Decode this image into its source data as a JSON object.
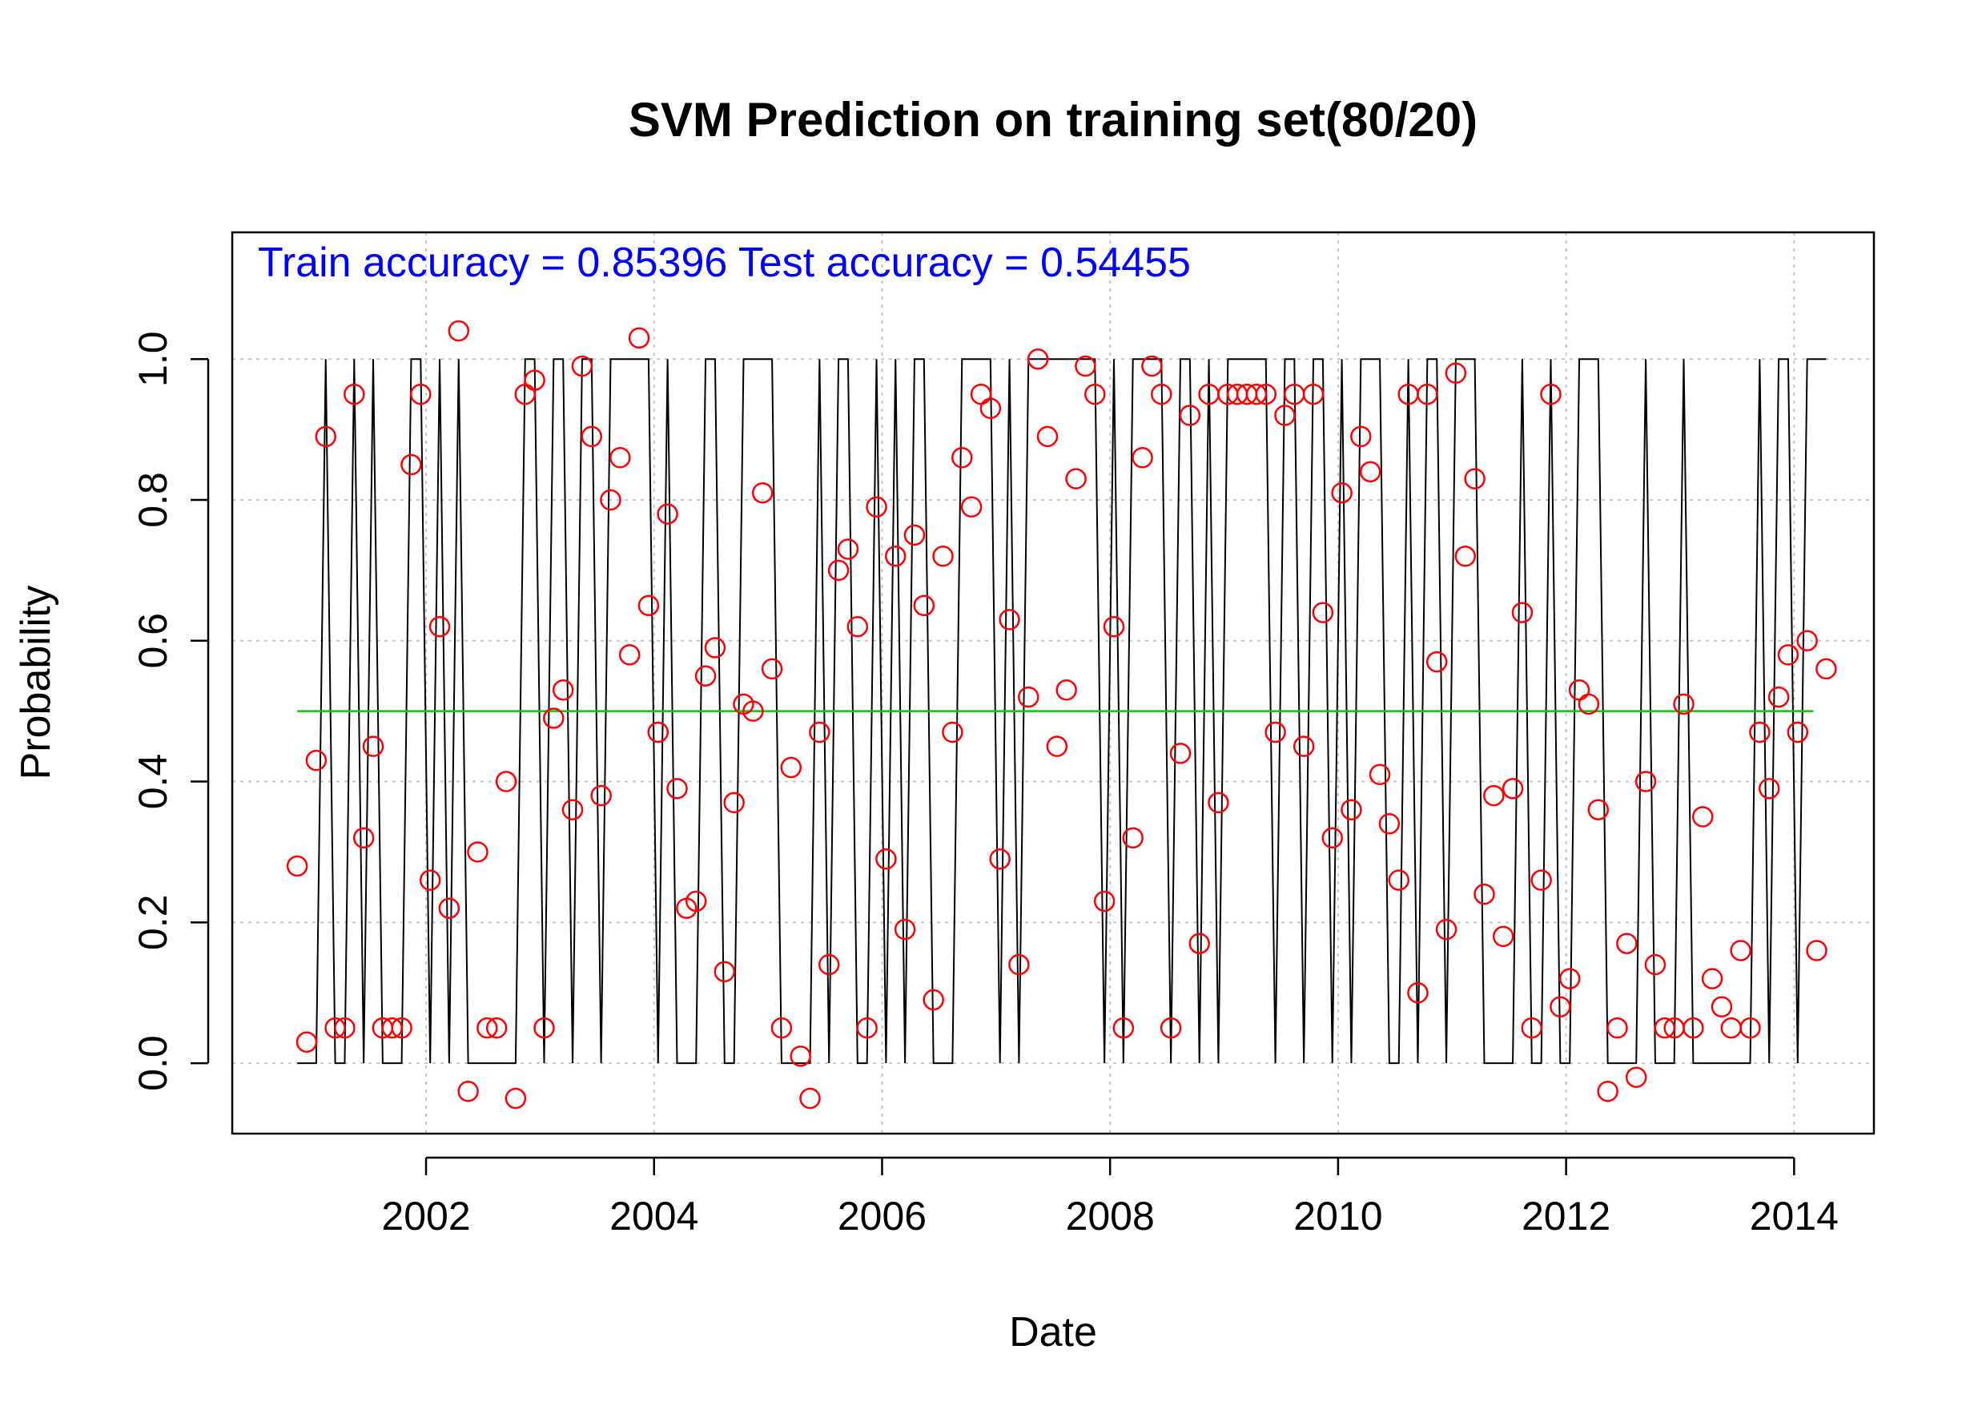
{
  "chart_data": {
    "type": "scatter",
    "title": "SVM Prediction on training set(80/20)",
    "xlabel": "Date",
    "ylabel": "Probability",
    "annotation": "Train accuracy = 0.85396 Test accuracy = 0.54455",
    "x_ticks": [
      "2002",
      "2004",
      "2006",
      "2008",
      "2010",
      "2012",
      "2014"
    ],
    "y_ticks": [
      "0.0",
      "0.2",
      "0.4",
      "0.6",
      "0.8",
      "1.0"
    ],
    "xlim": [
      2000.3,
      2014.7
    ],
    "ylim": [
      -0.1,
      1.18
    ],
    "grid": true,
    "threshold": 0.5,
    "series": [
      {
        "type": "scatter",
        "marker": "open-circle",
        "color": "#ff0000",
        "x_start": 2000.87,
        "x_step": 0.0833,
        "values": [
          0.28,
          0.03,
          0.43,
          0.89,
          0.05,
          0.05,
          0.95,
          0.32,
          0.45,
          0.05,
          0.05,
          0.05,
          0.85,
          0.95,
          0.26,
          0.62,
          0.22,
          1.04,
          -0.04,
          0.3,
          0.05,
          0.05,
          0.4,
          -0.05,
          0.95,
          0.97,
          0.05,
          0.49,
          0.53,
          0.36,
          0.99,
          0.89,
          0.38,
          0.8,
          0.86,
          0.58,
          1.03,
          0.65,
          0.47,
          0.78,
          0.39,
          0.22,
          0.23,
          0.55,
          0.59,
          0.13,
          0.37,
          0.51,
          0.5,
          0.81,
          0.56,
          0.05,
          0.42,
          0.01,
          -0.05,
          0.47,
          0.14,
          0.7,
          0.73,
          0.62,
          0.05,
          0.79,
          0.29,
          0.72,
          0.19,
          0.75,
          0.65,
          0.09,
          0.72,
          0.47,
          0.86,
          0.79,
          0.95,
          0.93,
          0.29,
          0.63,
          0.14,
          0.52,
          1.0,
          0.89,
          0.45,
          0.53,
          0.83,
          0.99,
          0.95,
          0.23,
          0.62,
          0.05,
          0.32,
          0.86,
          0.99,
          0.95,
          0.05,
          0.44,
          0.92,
          0.17,
          0.95,
          0.37,
          0.95,
          0.95,
          0.95,
          0.95,
          0.95,
          0.47,
          0.92,
          0.95,
          0.45,
          0.95,
          0.64,
          0.32,
          0.81,
          0.36,
          0.89,
          0.84,
          0.41,
          0.34,
          0.26,
          0.95,
          0.1,
          0.95,
          0.57,
          0.19,
          0.98,
          0.72,
          0.83,
          0.24,
          0.38,
          0.18,
          0.39,
          0.64,
          0.05,
          0.26,
          0.95,
          0.08,
          0.12,
          0.53,
          0.51,
          0.36,
          -0.04,
          0.05,
          0.17,
          -0.02,
          0.4,
          0.14,
          0.05,
          0.05,
          0.51,
          0.05,
          0.35,
          0.12,
          0.08,
          0.05,
          0.16,
          0.05,
          0.47,
          0.39,
          0.52,
          0.58,
          0.47,
          0.6,
          0.16,
          0.56
        ]
      },
      {
        "type": "step-line",
        "color": "#000000",
        "x_start": 2000.87,
        "x_step": 0.0833,
        "values": [
          0,
          0,
          0,
          1,
          0,
          0,
          1,
          0,
          1,
          0,
          0,
          0,
          1,
          1,
          0,
          1,
          0,
          1,
          0,
          0,
          0,
          0,
          0,
          0,
          1,
          1,
          0,
          1,
          1,
          0,
          1,
          1,
          0,
          1,
          1,
          1,
          1,
          1,
          0,
          1,
          0,
          0,
          0,
          1,
          1,
          0,
          0,
          1,
          1,
          1,
          1,
          0,
          0,
          0,
          0,
          1,
          0,
          1,
          1,
          0,
          0,
          1,
          0,
          1,
          0,
          1,
          1,
          0,
          0,
          0,
          1,
          1,
          1,
          1,
          0,
          1,
          0,
          1,
          1,
          1,
          1,
          1,
          1,
          1,
          1,
          0,
          1,
          0,
          1,
          1,
          1,
          1,
          0,
          1,
          1,
          0,
          1,
          0,
          1,
          1,
          1,
          1,
          1,
          0,
          1,
          1,
          0,
          1,
          1,
          0,
          1,
          0,
          1,
          1,
          1,
          0,
          0,
          1,
          0,
          1,
          1,
          0,
          1,
          1,
          1,
          0,
          0,
          0,
          0,
          1,
          0,
          0,
          1,
          0,
          0,
          1,
          1,
          1,
          0,
          0,
          0,
          0,
          1,
          0,
          0,
          0,
          1,
          0,
          0,
          0,
          0,
          0,
          0,
          0,
          1,
          0,
          1,
          1,
          0,
          1,
          1,
          1
        ]
      },
      {
        "type": "hline",
        "color": "#00cc00",
        "x_range": [
          2000.87,
          2014.17
        ],
        "y": 0.5
      }
    ]
  }
}
